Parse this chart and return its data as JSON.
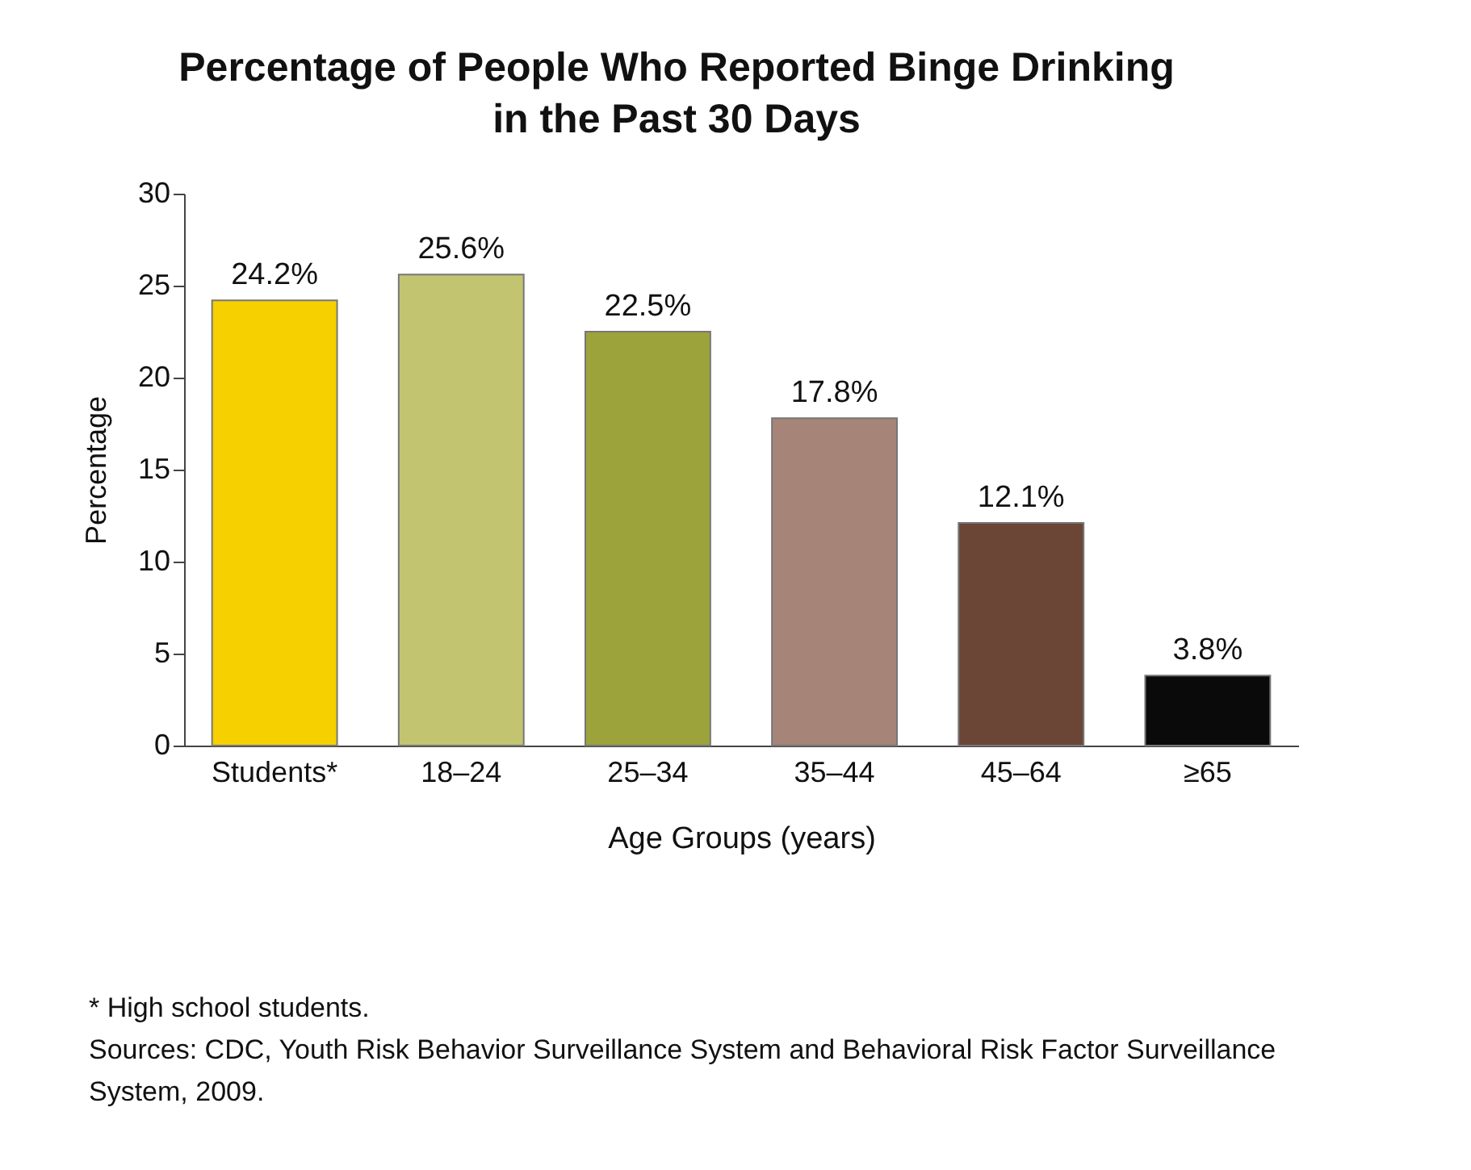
{
  "chart_data": {
    "type": "bar",
    "title": [
      "Percentage of People Who Reported Binge Drinking",
      "in the Past 30 Days"
    ],
    "xlabel": "Age Groups (years)",
    "ylabel": "Percentage",
    "categories": [
      "Students*",
      "18–24",
      "25–34",
      "35–44",
      "45–64",
      "≥65"
    ],
    "values": [
      24.2,
      25.6,
      22.5,
      17.8,
      12.1,
      3.8
    ],
    "value_labels": [
      "24.2%",
      "25.6%",
      "22.5%",
      "17.8%",
      "12.1%",
      "3.8%"
    ],
    "colors": [
      "#f7d000",
      "#c3c46f",
      "#9ca33a",
      "#a68478",
      "#6b4536",
      "#0a0a0a"
    ],
    "ylim": [
      0,
      30
    ],
    "yticks": [
      0,
      5,
      10,
      15,
      20,
      25,
      30
    ],
    "grid": false,
    "annotations": [
      "* High school students.",
      "Sources: CDC, Youth Risk Behavior Surveillance System and Behavioral Risk Factor Surveillance System, 2009."
    ]
  }
}
